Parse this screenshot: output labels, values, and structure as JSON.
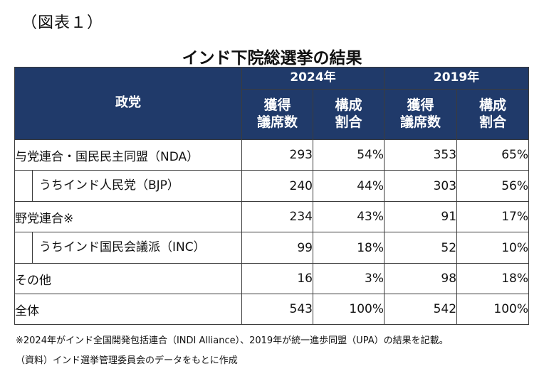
{
  "figure_label": "（図表１）",
  "title": "インド下院総選挙の結果",
  "header": {
    "party_label": "政党",
    "year_2024": "2024年",
    "year_2019": "2019年",
    "seats_2024": "獲得\n議席数",
    "share_2024": "構成\n割合",
    "seats_2019": "獲得\n議席数",
    "share_2019": "構成\n割合"
  },
  "rows": [
    {
      "party": "与党連合・国民民主同盟（NDA）",
      "seats_2024": "293",
      "share_2024": "54%",
      "seats_2019": "353",
      "share_2019": "65%"
    },
    {
      "party": "うちインド人民党（BJP）",
      "seats_2024": "240",
      "share_2024": "44%",
      "seats_2019": "303",
      "share_2019": "56%"
    },
    {
      "party": "野党連合※",
      "seats_2024": "234",
      "share_2024": "43%",
      "seats_2019": "91",
      "share_2019": "17%"
    },
    {
      "party": "うちインド国民会議派（INC）",
      "seats_2024": "99",
      "share_2024": "18%",
      "seats_2019": "52",
      "share_2019": "10%"
    },
    {
      "party": "その他",
      "seats_2024": "16",
      "share_2024": "3%",
      "seats_2019": "98",
      "share_2019": "18%"
    },
    {
      "party": "全体",
      "seats_2024": "543",
      "share_2024": "100%",
      "seats_2019": "542",
      "share_2019": "100%"
    }
  ],
  "notes": {
    "note1": "※2024年がインド全国開発包括連合（INDI Alliance）、2019年が統一進歩同盟（UPA）の結果を記載。",
    "note2": "（資料）インド選挙管理委員会のデータをもとに作成"
  }
}
